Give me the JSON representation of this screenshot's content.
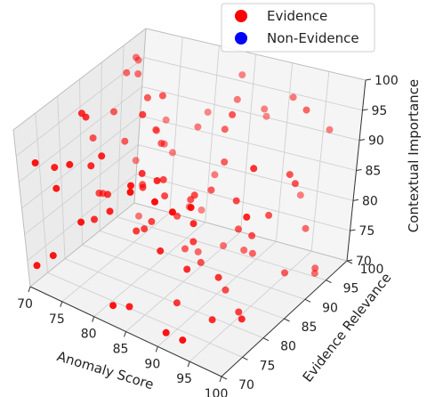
{
  "chart_data": {
    "type": "scatter",
    "projection": "3d",
    "xlabel": "Anomaly Score",
    "ylabel": "Evidence Relevance",
    "zlabel": "Contextual Importance",
    "xlim": [
      70,
      100
    ],
    "ylim": [
      70,
      100
    ],
    "zlim": [
      70,
      100
    ],
    "x_ticks": [
      "70",
      "75",
      "80",
      "85",
      "90",
      "95",
      "100"
    ],
    "y_ticks": [
      "70",
      "75",
      "80",
      "85",
      "90",
      "95",
      "100"
    ],
    "z_ticks": [
      "70",
      "75",
      "80",
      "85",
      "90",
      "95",
      "100"
    ],
    "grid": true,
    "legend_position": "top-right",
    "legend": [
      {
        "label": "Evidence",
        "color": "#ff0000"
      },
      {
        "label": "Non-Evidence",
        "color": "#0000ff"
      }
    ],
    "series": [
      {
        "name": "Evidence",
        "color": "#ff0000",
        "points": [
          [
            77.6,
            72.1,
            84.9
          ],
          [
            75.8,
            73.1,
            94.1
          ],
          [
            95.9,
            86.9,
            84.6
          ],
          [
            80.3,
            74.8,
            86.5
          ],
          [
            81.4,
            83.0,
            80.2
          ],
          [
            85.1,
            72.5,
            94.7
          ],
          [
            87.7,
            82.7,
            79.5
          ],
          [
            80.6,
            82.2,
            86.4
          ],
          [
            71.8,
            92.8,
            97.1
          ],
          [
            94.2,
            97.3,
            80.8
          ],
          [
            70.5,
            87.2,
            88.3
          ],
          [
            73.4,
            90.0,
            87.2
          ],
          [
            99.1,
            93.6,
            71.7
          ],
          [
            87.7,
            89.6,
            89.0
          ],
          [
            82.6,
            70.9,
            72.9
          ],
          [
            99.7,
            92.5,
            73.5
          ],
          [
            87.8,
            98.2,
            92.7
          ],
          [
            79.3,
            99.8,
            88.6
          ],
          [
            87.0,
            79.9,
            70.2
          ],
          [
            86.8,
            90.9,
            93.5
          ],
          [
            70.5,
            71.5,
            73.5
          ],
          [
            71.4,
            95.6,
            98.0
          ],
          [
            72.7,
            84.8,
            80.6
          ],
          [
            70.6,
            97.6,
            96.1
          ],
          [
            78.6,
            89.9,
            88.8
          ],
          [
            85.3,
            85.9,
            83.9
          ],
          [
            91.3,
            76.9,
            87.8
          ],
          [
            97.4,
            89.0,
            74.1
          ],
          [
            94.8,
            71.1,
            95.9
          ],
          [
            86.3,
            76.5,
            93.5
          ],
          [
            99.5,
            86.7,
            91.4
          ],
          [
            86.9,
            86.1,
            73.5
          ],
          [
            87.6,
            99.2,
            90.8
          ],
          [
            99.8,
            75.7,
            93.2
          ],
          [
            92.7,
            70.2,
            94.8
          ],
          [
            75.4,
            94.1,
            87.6
          ],
          [
            89.0,
            93.4,
            72.1
          ],
          [
            98.6,
            78.8,
            98.9
          ],
          [
            78.7,
            97.8,
            73.4
          ],
          [
            97.2,
            97.6,
            92.5
          ],
          [
            82.5,
            84.3,
            84.4
          ],
          [
            89.9,
            77.6,
            78.8
          ],
          [
            85.6,
            94.3,
            71.1
          ],
          [
            91.3,
            84.9,
            71.3
          ],
          [
            91.5,
            87.2,
            80.4
          ],
          [
            75.9,
            78.0,
            81.1
          ],
          [
            79.6,
            99.5,
            72.2
          ],
          [
            93.6,
            79.2,
            78.0
          ],
          [
            82.1,
            88.2,
            78.4
          ],
          [
            93.6,
            77.8,
            71.6
          ],
          [
            76.3,
            77.1,
            91.6
          ],
          [
            77.5,
            87.4,
            82.6
          ],
          [
            92.6,
            84.6,
            87.3
          ],
          [
            74.6,
            79.0,
            98.6
          ],
          [
            90.8,
            70.9,
            72.3
          ],
          [
            74.1,
            99.0,
            86.1
          ],
          [
            76.6,
            80.3,
            84.6
          ],
          [
            74.5,
            78.3,
            99.7
          ],
          [
            79.8,
            96.6,
            88.1
          ],
          [
            82.4,
            96.9,
            80.6
          ],
          [
            85.0,
            96.5,
            94.5
          ],
          [
            97.6,
            93.1,
            79.0
          ],
          [
            84.1,
            98.8,
            97.0
          ],
          [
            93.7,
            70.4,
            72.8
          ],
          [
            86.8,
            76.2,
            81.5
          ],
          [
            73.0,
            71.9,
            76.5
          ],
          [
            80.5,
            80.7,
            79.5
          ],
          [
            82.6,
            83.8,
            87.6
          ],
          [
            71.9,
            87.2,
            78.9
          ],
          [
            71.1,
            97.4,
            79.0
          ],
          [
            89.3,
            88.3,
            98.5
          ],
          [
            98.8,
            86.5,
            92.8
          ],
          [
            86.3,
            70.6,
            95.3
          ],
          [
            72.4,
            94.5,
            96.1
          ],
          [
            72.6,
            96.0,
            70.6
          ],
          [
            82.7,
            78.7,
            91.9
          ],
          [
            79.1,
            75.3,
            95.7
          ],
          [
            86.6,
            88.6,
            84.4
          ],
          [
            90.2,
            70.1,
            95.6
          ],
          [
            86.5,
            84.8,
            85.8
          ],
          [
            83.0,
            92.5,
            70.1
          ],
          [
            91.6,
            90.9,
            74.0
          ],
          [
            80.5,
            82.7,
            78.7
          ],
          [
            80.3,
            82.7,
            98.9
          ],
          [
            83.1,
            74.2,
            71.0
          ],
          [
            74.0,
            96.9,
            85.4
          ],
          [
            97.4,
            91.6,
            99.8
          ],
          [
            94.4,
            85.6,
            81.4
          ],
          [
            98.6,
            76.9,
            74.6
          ],
          [
            72.2,
            89.3,
            92.4
          ],
          [
            82.2,
            90.4,
            71.5
          ],
          [
            79.4,
            88.6,
            98.2
          ],
          [
            95.2,
            81.7,
            71.2
          ],
          [
            73.8,
            72.7,
            89.0
          ],
          [
            75.8,
            98.0,
            81.6
          ],
          [
            92.6,
            96.4,
            97.3
          ],
          [
            77.0,
            89.1,
            96.7
          ],
          [
            71.4,
            72.0,
            93.1
          ],
          [
            72.9,
            74.0,
            91.7
          ],
          [
            75.7,
            95.9,
            84.2
          ]
        ]
      }
    ]
  }
}
